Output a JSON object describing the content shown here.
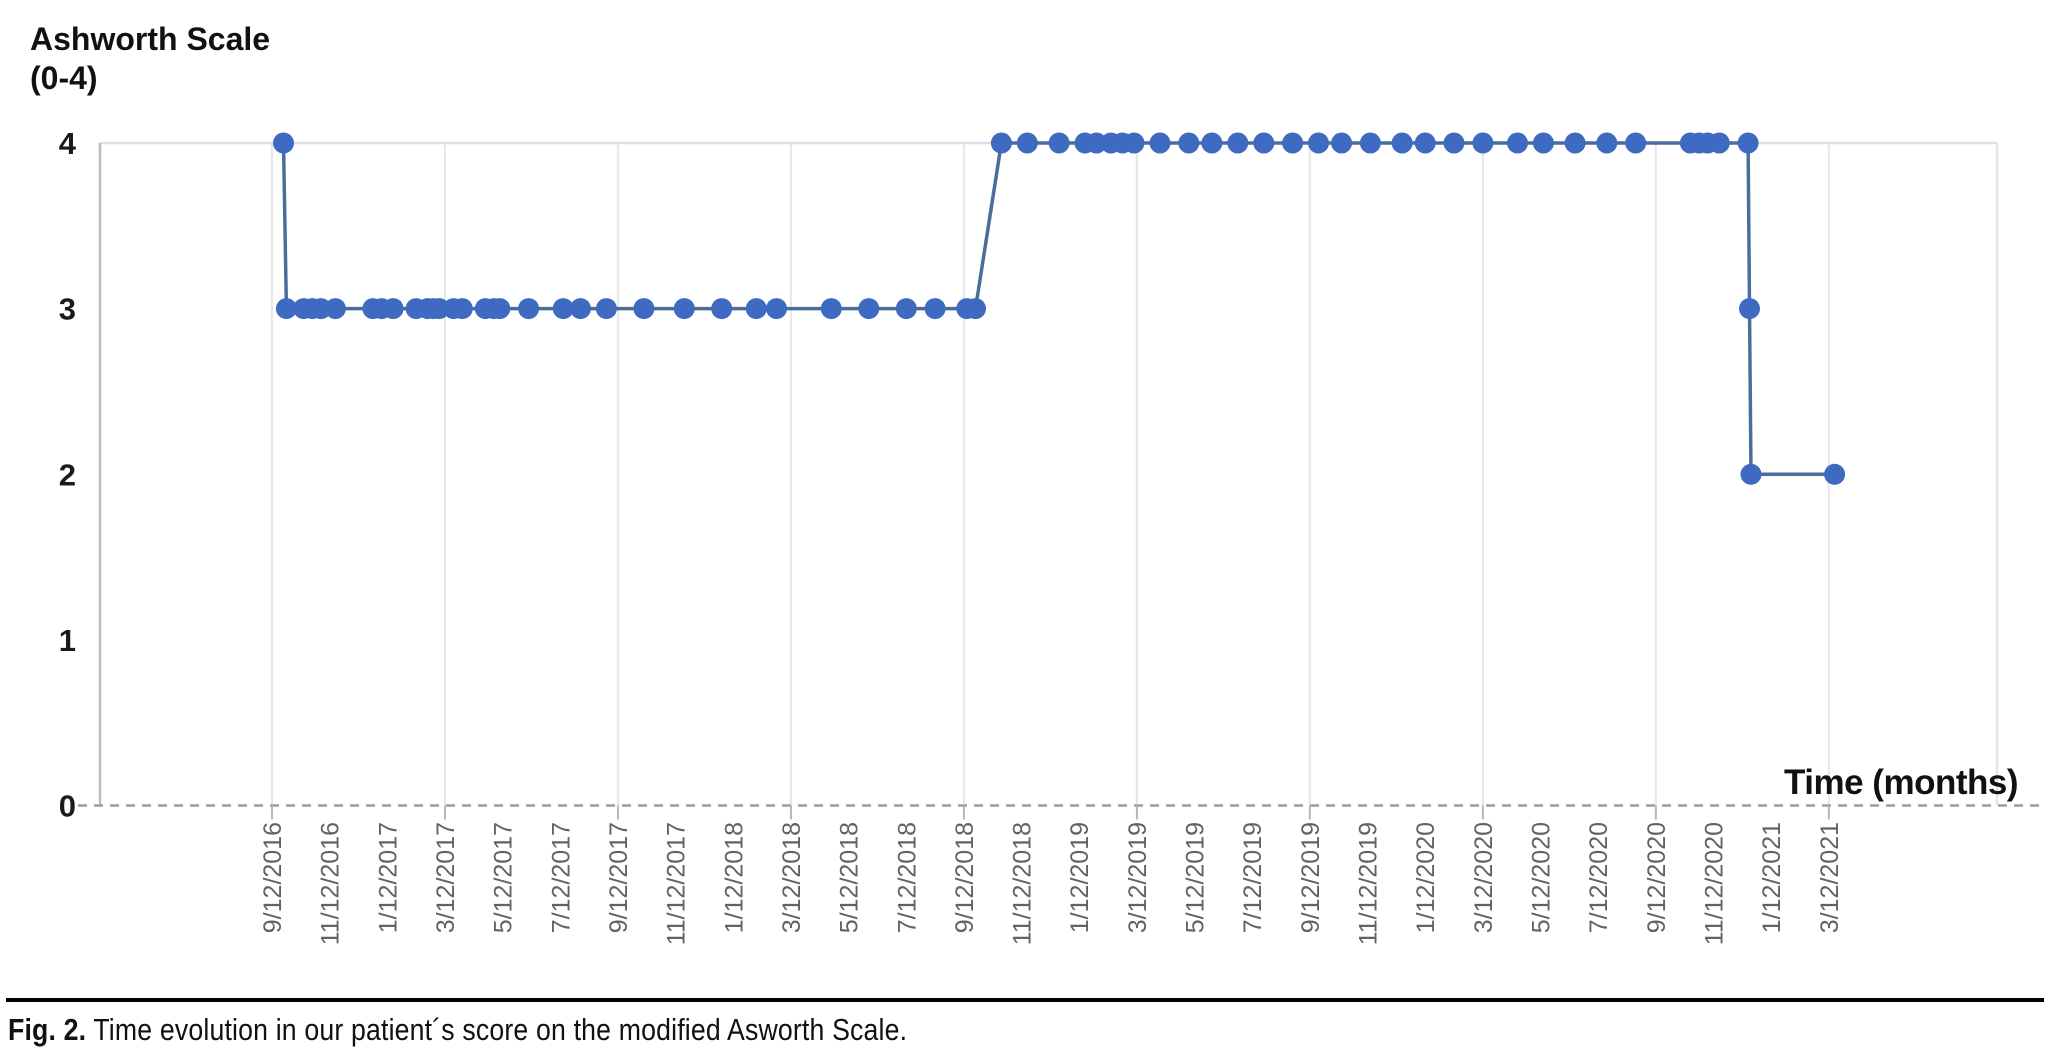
{
  "figure": {
    "y_axis_title_line1": "Ashworth Scale",
    "y_axis_title_line2": "(0-4)",
    "x_axis_title": "Time (months)",
    "caption_label": "Fig. 2.",
    "caption_text": " Time evolution in our patient´s score on the modified Asworth Scale."
  },
  "colors": {
    "point": "#3e6ac1",
    "line": "#4a6d9c",
    "axis": "#b6bcc6",
    "gridline": "#e6e8ea",
    "top_gridline": "#dcdfe3",
    "right_border": "#e4e6e9",
    "zero_dash": "#9e9e9e",
    "tick_mark": "#b7b7b7",
    "x_tick_text": "#5f6368",
    "y_tick_text": "#1a1a1a"
  },
  "chart_data": {
    "type": "line",
    "title": "Ashworth Scale (0-4)",
    "xlabel": "Time (months)",
    "ylabel": "Ashworth Scale (0-4)",
    "ylim": [
      0,
      4
    ],
    "yticks": [
      0,
      1,
      2,
      3,
      4
    ],
    "grid": "vertical gridlines every 6 months; horizontal gridline at y=4; dashed baseline at y=0",
    "legend_position": "none",
    "x_tick_step_months": 2,
    "gridline_every_n_labels": 3,
    "x_tick_labels": [
      "9/12/2016",
      "11/12/2016",
      "1/12/2017",
      "3/12/2017",
      "5/12/2017",
      "7/12/2017",
      "9/12/2017",
      "11/12/2017",
      "1/12/2018",
      "3/12/2018",
      "5/12/2018",
      "7/12/2018",
      "9/12/2018",
      "11/12/2018",
      "1/12/2019",
      "3/12/2019",
      "5/12/2019",
      "7/12/2019",
      "9/12/2019",
      "11/12/2019",
      "1/12/2020",
      "3/12/2020",
      "5/12/2020",
      "7/12/2020",
      "9/12/2020",
      "11/12/2020",
      "1/12/2021",
      "3/12/2021"
    ],
    "x_unit_note": "point x values are months elapsed since first visit (9/12/2016)",
    "series": [
      {
        "name": "Modified Ashworth Scale score",
        "points": [
          [
            0.4,
            4
          ],
          [
            0.5,
            3
          ],
          [
            1.1,
            3
          ],
          [
            1.4,
            3
          ],
          [
            1.7,
            3
          ],
          [
            2.2,
            3
          ],
          [
            3.5,
            3
          ],
          [
            3.8,
            3
          ],
          [
            4.2,
            3
          ],
          [
            5.0,
            3
          ],
          [
            5.4,
            3
          ],
          [
            5.6,
            3
          ],
          [
            5.8,
            3
          ],
          [
            6.3,
            3
          ],
          [
            6.6,
            3
          ],
          [
            7.4,
            3
          ],
          [
            7.7,
            3
          ],
          [
            7.9,
            3
          ],
          [
            8.9,
            3
          ],
          [
            10.1,
            3
          ],
          [
            10.7,
            3
          ],
          [
            11.6,
            3
          ],
          [
            12.9,
            3
          ],
          [
            14.3,
            3
          ],
          [
            15.6,
            3
          ],
          [
            16.8,
            3
          ],
          [
            17.5,
            3
          ],
          [
            19.4,
            3
          ],
          [
            20.7,
            3
          ],
          [
            22.0,
            3
          ],
          [
            23.0,
            3
          ],
          [
            24.1,
            3
          ],
          [
            24.4,
            3
          ],
          [
            25.3,
            4
          ],
          [
            26.2,
            4
          ],
          [
            27.3,
            4
          ],
          [
            28.2,
            4
          ],
          [
            28.6,
            4
          ],
          [
            29.1,
            4
          ],
          [
            29.5,
            4
          ],
          [
            29.9,
            4
          ],
          [
            30.8,
            4
          ],
          [
            31.8,
            4
          ],
          [
            32.6,
            4
          ],
          [
            33.5,
            4
          ],
          [
            34.4,
            4
          ],
          [
            35.4,
            4
          ],
          [
            36.3,
            4
          ],
          [
            37.1,
            4
          ],
          [
            38.1,
            4
          ],
          [
            39.2,
            4
          ],
          [
            40.0,
            4
          ],
          [
            41.0,
            4
          ],
          [
            42.0,
            4
          ],
          [
            43.2,
            4
          ],
          [
            44.1,
            4
          ],
          [
            45.2,
            4
          ],
          [
            46.3,
            4
          ],
          [
            47.3,
            4
          ],
          [
            49.2,
            4
          ],
          [
            49.5,
            4
          ],
          [
            49.8,
            4
          ],
          [
            50.2,
            4
          ],
          [
            51.2,
            4
          ],
          [
            51.25,
            3
          ],
          [
            51.3,
            2
          ],
          [
            54.2,
            2
          ]
        ]
      }
    ]
  }
}
